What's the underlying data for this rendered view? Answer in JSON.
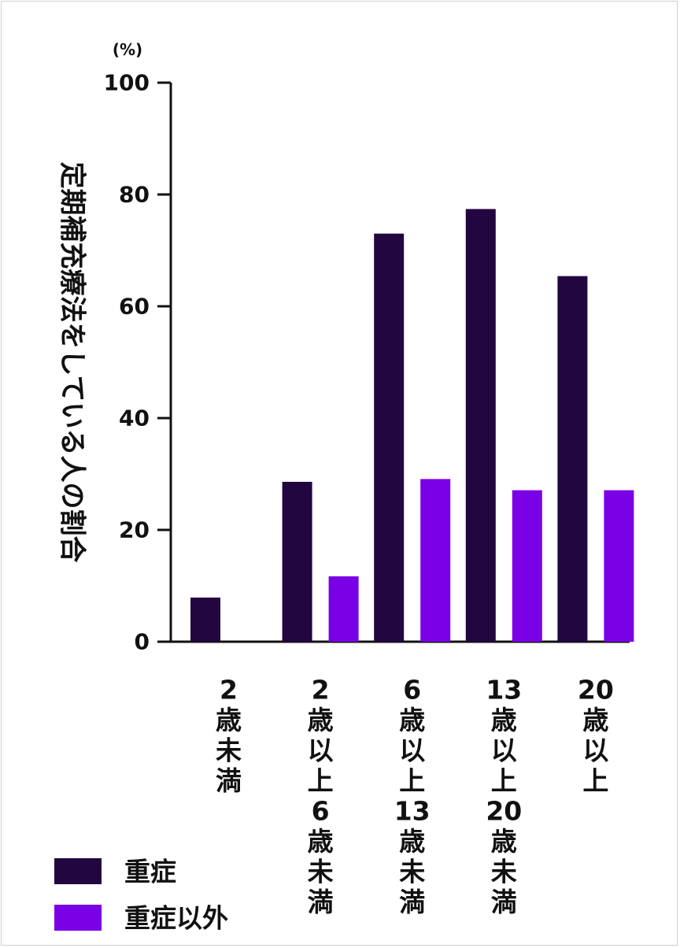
{
  "chart_data": {
    "type": "bar",
    "unit_label": "(%)",
    "ylabel": "定期補充療法をしている人の割合",
    "ylim": [
      0,
      100
    ],
    "yticks": [
      0,
      20,
      40,
      60,
      80,
      100
    ],
    "categories": [
      [
        "2",
        "歳",
        "未",
        "満"
      ],
      [
        "2",
        "歳",
        "以",
        "上",
        "6",
        "歳",
        "未",
        "満"
      ],
      [
        "6",
        "歳",
        "以",
        "上",
        "13",
        "歳",
        "未",
        "満"
      ],
      [
        "13",
        "歳",
        "以",
        "上",
        "20",
        "歳",
        "未",
        "満"
      ],
      [
        "20",
        "歳",
        "以",
        "上"
      ]
    ],
    "series": [
      {
        "name": "重症",
        "color": "#22063f",
        "values": [
          7.9,
          28.6,
          73.0,
          77.4,
          65.4
        ]
      },
      {
        "name": "重症以外",
        "color": "#7a00e6",
        "values": [
          null,
          11.7,
          29.1,
          27.1,
          27.1
        ]
      }
    ],
    "legend_position": "bottom-left",
    "grid": false
  }
}
